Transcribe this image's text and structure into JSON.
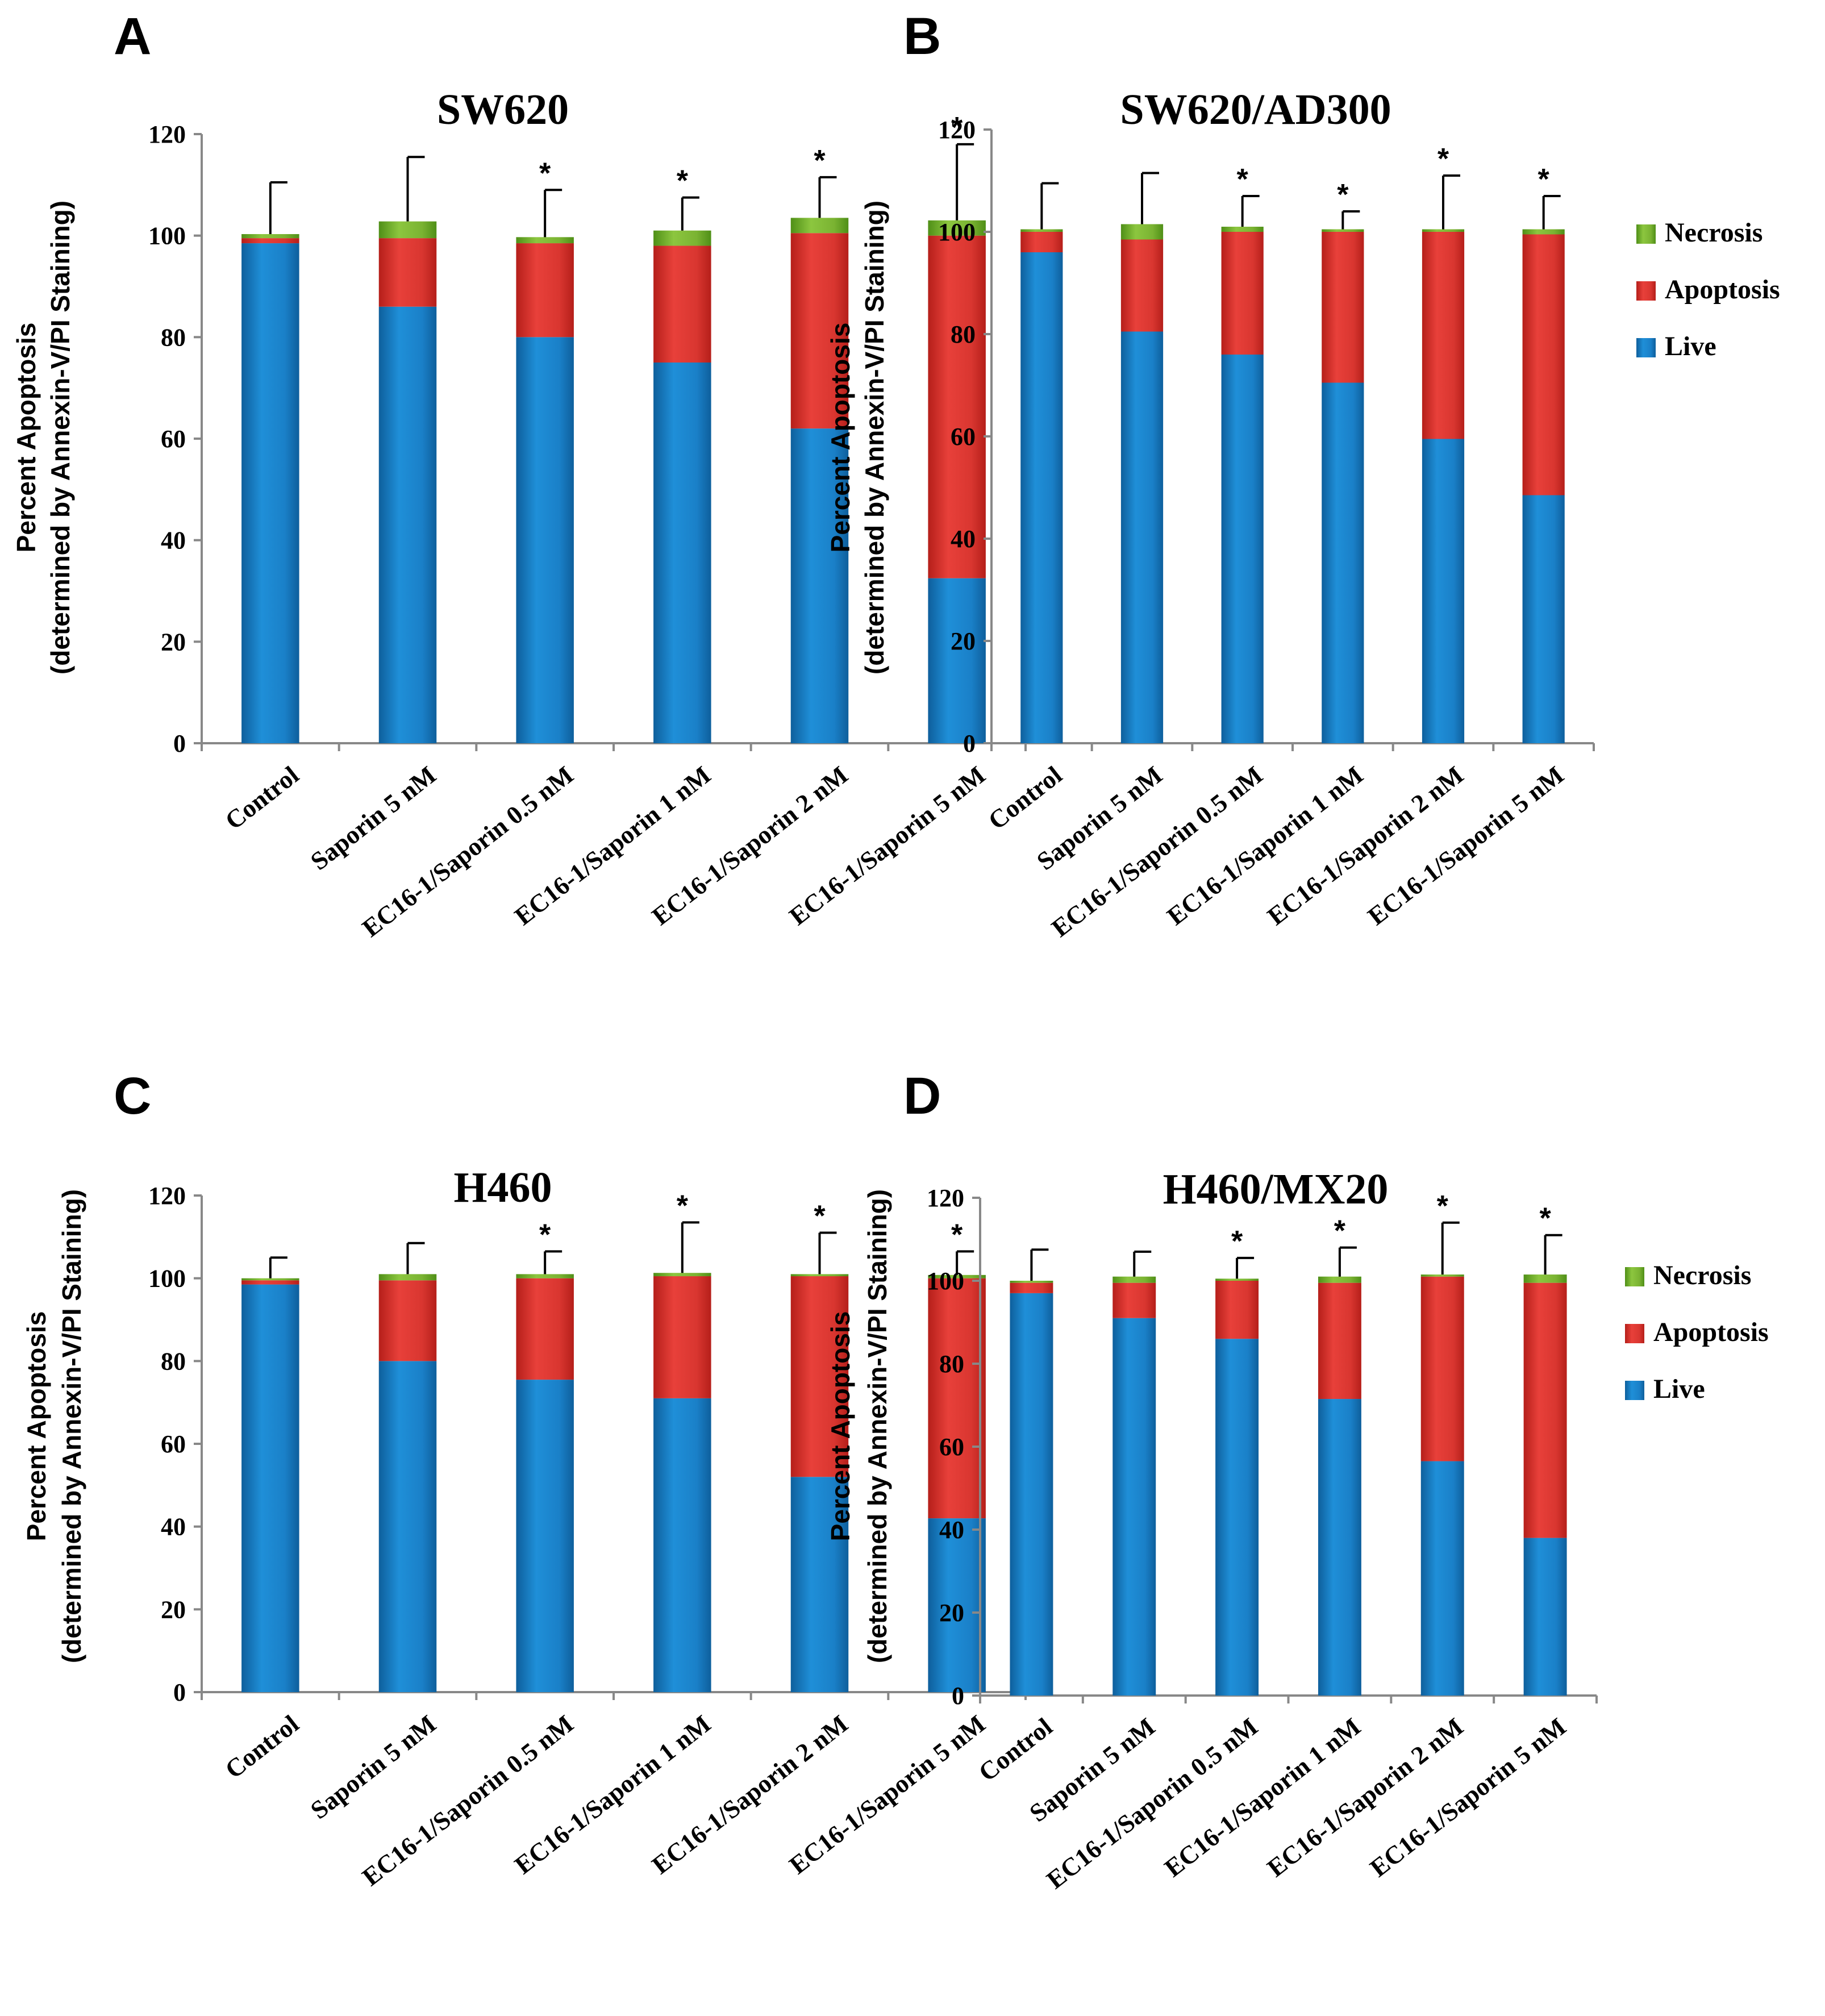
{
  "chart_data": [
    {
      "type": "bar",
      "panel": "A",
      "title": "SW620",
      "ylabel_line1": "Percent Apoptosis",
      "ylabel_line2": "(determined by Annexin-V/PI Staining)",
      "ylim": [
        0,
        120
      ],
      "yticks": [
        "0",
        "20",
        "40",
        "60",
        "80",
        "100",
        "120"
      ],
      "categories": [
        "Control",
        "Saporin 5 nM",
        "EC16-1/Saporin 0.5 nM",
        "EC16-1/Saporin 1 nM",
        "EC16-1/Saporin 2 nM",
        "EC16-1/Saporin 5 nM"
      ],
      "series": [
        {
          "name": "Live",
          "values": [
            98.5,
            86,
            80,
            75,
            62,
            32.5
          ]
        },
        {
          "name": "Apoptosis",
          "values": [
            1,
            13.5,
            18.5,
            23,
            38.5,
            67.5
          ]
        },
        {
          "name": "Necrosis",
          "values": [
            0.8,
            3.3,
            1.2,
            3,
            3,
            3
          ]
        }
      ],
      "error_top": [
        110.5,
        115.5,
        109,
        107.5,
        111.5,
        118
      ],
      "significant": [
        "",
        "",
        "*",
        "*",
        "*",
        "*"
      ],
      "show_legend": false
    },
    {
      "type": "bar",
      "panel": "B",
      "title": "SW620/AD300",
      "ylabel_line1": "Percent Apoptosis",
      "ylabel_line2": "(determined by Annexin-V/PI Staining)",
      "ylim": [
        0,
        120
      ],
      "yticks": [
        "0",
        "20",
        "40",
        "60",
        "80",
        "100",
        "120"
      ],
      "categories": [
        "Control",
        "Saporin 5 nM",
        "EC16-1/Saporin 0.5 nM",
        "EC16-1/Saporin 1 nM",
        "EC16-1/Saporin 2 nM",
        "EC16-1/Saporin 5 nM"
      ],
      "series": [
        {
          "name": "Live",
          "values": [
            96,
            80.5,
            76,
            70.5,
            59.5,
            48.5
          ]
        },
        {
          "name": "Apoptosis",
          "values": [
            4,
            18,
            24,
            29.5,
            40.5,
            51
          ]
        },
        {
          "name": "Necrosis",
          "values": [
            0.5,
            3,
            1,
            0.5,
            0.5,
            1
          ]
        }
      ],
      "error_top": [
        109.5,
        111.5,
        107,
        104,
        111,
        107
      ],
      "significant": [
        "",
        "",
        "*",
        "*",
        "*",
        "*"
      ],
      "show_legend": true,
      "legend": [
        "Necrosis",
        "Apoptosis",
        "Live"
      ]
    },
    {
      "type": "bar",
      "panel": "C",
      "title": "H460",
      "ylabel_line1": "Percent Apoptosis",
      "ylabel_line2": "(determined by Annexin-V/PI Staining)",
      "ylim": [
        0,
        120
      ],
      "yticks": [
        "0",
        "20",
        "40",
        "60",
        "80",
        "100",
        "120"
      ],
      "categories": [
        "Control",
        "Saporin 5 nM",
        "EC16-1/Saporin 0.5 nM",
        "EC16-1/Saporin 1 nM",
        "EC16-1/Saporin 2 nM",
        "EC16-1/Saporin 5 nM"
      ],
      "series": [
        {
          "name": "Live",
          "values": [
            98.5,
            80,
            75.5,
            71,
            52,
            42
          ]
        },
        {
          "name": "Apoptosis",
          "values": [
            1,
            19.5,
            24.5,
            29.5,
            48.5,
            58
          ]
        },
        {
          "name": "Necrosis",
          "values": [
            0.5,
            1.5,
            1,
            0.8,
            0.5,
            0.8
          ]
        }
      ],
      "error_top": [
        105,
        108.5,
        106.5,
        113.5,
        111,
        106.5
      ],
      "significant": [
        "",
        "",
        "*",
        "*",
        "*",
        "*"
      ],
      "show_legend": false
    },
    {
      "type": "bar",
      "panel": "D",
      "title": "H460/MX20",
      "ylabel_line1": "Percent Apoptosis",
      "ylabel_line2": "(determined by Annexin-V/PI Staining)",
      "ylim": [
        0,
        120
      ],
      "yticks": [
        "0",
        "20",
        "40",
        "60",
        "80",
        "100",
        "120"
      ],
      "categories": [
        "Control",
        "Saporin 5 nM",
        "EC16-1/Saporin 0.5 nM",
        "EC16-1/Saporin 1 nM",
        "EC16-1/Saporin 2 nM",
        "EC16-1/Saporin 5 nM"
      ],
      "series": [
        {
          "name": "Live",
          "values": [
            97,
            91,
            86,
            71.5,
            56.5,
            38
          ]
        },
        {
          "name": "Apoptosis",
          "values": [
            2.5,
            8.5,
            14,
            28,
            44.5,
            61.5
          ]
        },
        {
          "name": "Necrosis",
          "values": [
            0.5,
            1.5,
            0.5,
            1.5,
            0.5,
            2
          ]
        }
      ],
      "error_top": [
        107.5,
        107,
        105.5,
        108,
        114,
        111
      ],
      "significant": [
        "",
        "",
        "*",
        "*",
        "*",
        "*"
      ],
      "show_legend": true,
      "legend": [
        "Necrosis",
        "Apoptosis",
        "Live"
      ]
    }
  ],
  "colors": {
    "Live": "#1f8fd8",
    "Live_dark": "#0e5f9c",
    "Apoptosis": "#e8403a",
    "Apoptosis_dark": "#b51f1a",
    "Necrosis": "#8cc63f",
    "Necrosis_dark": "#4f8f17",
    "axis": "#888888",
    "text": "#000000"
  }
}
